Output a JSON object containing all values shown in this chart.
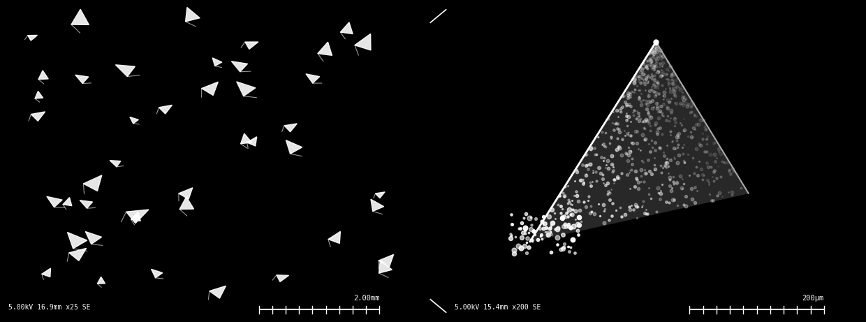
{
  "bg_color": "#000000",
  "white_color": "#ffffff",
  "left_label": "5.00kV 16.9mm x25 SE",
  "left_scale_bar": "2.00mm",
  "right_label": "5.00kV 15.4mm x200 SE",
  "right_scale_bar": "200μm",
  "fig_width": 12.4,
  "fig_height": 4.61,
  "dpi": 100,
  "num_needles": 45,
  "seed": 42
}
